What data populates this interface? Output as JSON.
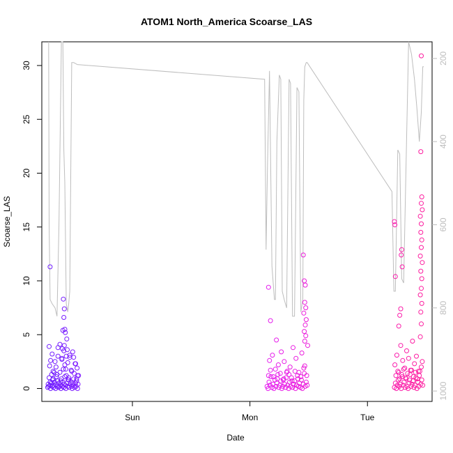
{
  "chart_data": {
    "type": "scatter",
    "title": "ATOM1 North_America Scoarse_LAS",
    "xlabel": "Date",
    "ylabel": "Scoarse_LAS",
    "x_ticks": [
      "Sun",
      "Mon",
      "Tue"
    ],
    "x_tick_hours": [
      24,
      48,
      72
    ],
    "xlim_hours": [
      5.5,
      85.2
    ],
    "ylim": [
      -1.2,
      32.2
    ],
    "y_ticks": [
      0,
      5,
      10,
      15,
      20,
      25,
      30
    ],
    "right_axis": {
      "ticks": [
        200,
        400,
        600,
        800,
        1000
      ],
      "ylim_inverted": [
        1025,
        160
      ],
      "color": "#bdbdbd"
    },
    "grid": false,
    "legend": "none",
    "colors": {
      "start": "#6a1cff",
      "middle": "#e01cff",
      "end": "#ff1c99",
      "line": "#bdbdbd"
    },
    "series": [
      {
        "kind": "points",
        "x_hours": [
          6.7,
          6.8,
          6.9,
          7.0,
          7.1,
          7.2,
          7.3,
          7.4,
          7.5,
          7.6,
          7.7,
          7.8,
          7.9,
          8.0,
          8.1,
          8.2,
          8.3,
          8.4,
          8.5,
          8.6,
          8.7,
          8.8,
          8.9,
          9.0,
          9.1,
          9.2,
          9.3,
          9.4,
          9.5,
          9.6,
          9.7,
          9.8,
          9.9,
          10.0,
          10.1,
          10.2,
          10.3,
          10.4,
          10.5,
          10.6,
          10.7,
          10.8,
          10.9,
          11.0,
          11.1,
          11.2,
          11.3,
          11.4,
          11.5,
          11.6,
          11.7,
          11.8,
          11.9,
          12.0,
          12.1,
          12.2,
          12.3,
          12.4,
          12.5,
          12.6,
          12.7,
          12.8,
          12.9,
          13.0,
          7.0,
          7.3,
          7.6,
          8.0,
          8.4,
          8.8,
          9.2,
          9.6,
          10.0,
          10.4,
          10.8,
          11.2,
          11.6,
          12.0,
          12.4,
          12.8,
          7.2,
          7.8,
          8.6,
          9.4,
          10.2,
          11.0,
          11.8,
          12.6,
          7.2,
          9.9,
          10.1,
          10.0,
          9.8,
          10.3,
          10.6,
          10.1,
          9.7,
          10.5,
          10.2
        ],
        "y": [
          0.1,
          0.4,
          0.2,
          1.0,
          2.1,
          0.3,
          0.0,
          0.5,
          1.3,
          0.2,
          0.8,
          1.6,
          0.1,
          0.3,
          0.6,
          2.5,
          0.0,
          0.4,
          1.1,
          0.2,
          0.7,
          3.0,
          0.1,
          0.5,
          0.2,
          1.5,
          0.3,
          0.0,
          0.9,
          2.8,
          0.2,
          0.6,
          1.8,
          0.1,
          0.4,
          2.2,
          0.3,
          0.0,
          1.2,
          0.5,
          3.6,
          0.2,
          0.8,
          1.0,
          0.1,
          2.9,
          0.4,
          0.6,
          1.7,
          0.2,
          0.0,
          3.4,
          0.3,
          0.9,
          1.4,
          0.1,
          2.3,
          0.5,
          0.2,
          0.7,
          1.9,
          0.0,
          0.4,
          1.2,
          3.9,
          2.6,
          3.2,
          1.5,
          2.0,
          3.8,
          4.1,
          2.7,
          3.5,
          1.8,
          2.4,
          3.1,
          1.6,
          2.9,
          2.3,
          1.2,
          0.6,
          0.9,
          1.3,
          0.7,
          1.1,
          0.8,
          0.5,
          0.9,
          11.3,
          8.3,
          7.4,
          6.6,
          5.4,
          5.2,
          4.6,
          4.0,
          3.7,
          3.0,
          5.5
        ],
        "color_key": "start"
      },
      {
        "kind": "points",
        "x_hours": [
          51.5,
          51.7,
          51.9,
          52.1,
          52.3,
          52.5,
          52.7,
          52.9,
          53.1,
          53.3,
          53.5,
          53.7,
          53.9,
          54.1,
          54.3,
          54.5,
          54.7,
          54.9,
          55.1,
          55.3,
          55.5,
          55.7,
          55.9,
          56.1,
          56.3,
          56.5,
          56.7,
          56.9,
          57.1,
          57.3,
          57.5,
          57.7,
          57.9,
          58.1,
          58.3,
          58.5,
          58.7,
          58.9,
          59.1,
          59.3,
          59.5,
          59.7,
          52.0,
          52.6,
          53.2,
          53.8,
          54.4,
          55.0,
          55.6,
          56.2,
          56.8,
          57.4,
          58.0,
          58.6,
          59.2,
          59.8,
          51.8,
          52.2,
          52.8,
          53.6,
          54.2,
          54.8,
          55.4,
          56.0,
          56.6,
          57.2,
          57.8,
          58.4,
          59.0,
          59.6,
          51.8,
          52.2,
          53.4,
          58.9,
          59.1,
          59.3,
          59.2,
          59.4,
          59.0,
          59.5,
          59.3,
          59.1,
          59.4,
          59.2
        ],
        "y": [
          0.2,
          0.0,
          0.6,
          0.3,
          1.1,
          0.1,
          0.4,
          0.0,
          0.8,
          0.2,
          0.5,
          1.3,
          0.1,
          0.3,
          0.7,
          0.0,
          0.2,
          0.9,
          0.4,
          0.1,
          1.5,
          0.3,
          0.0,
          0.6,
          0.2,
          1.0,
          0.1,
          0.4,
          0.7,
          0.0,
          0.3,
          1.2,
          0.2,
          0.5,
          0.1,
          0.8,
          0.0,
          0.4,
          1.4,
          0.2,
          0.6,
          0.3,
          2.6,
          3.1,
          1.8,
          2.2,
          3.4,
          2.5,
          1.6,
          2.0,
          3.8,
          2.8,
          1.5,
          3.3,
          2.1,
          4.0,
          1.2,
          1.7,
          1.1,
          0.9,
          1.4,
          0.8,
          1.0,
          1.3,
          0.7,
          1.6,
          0.9,
          1.1,
          1.9,
          1.2,
          9.4,
          6.3,
          4.5,
          12.4,
          10.0,
          9.6,
          8.0,
          7.5,
          7.0,
          6.4,
          5.9,
          5.3,
          4.9,
          4.4
        ],
        "color_key": "middle"
      },
      {
        "kind": "points",
        "x_hours": [
          77.5,
          77.7,
          77.9,
          78.1,
          78.3,
          78.5,
          78.7,
          78.9,
          79.1,
          79.3,
          79.5,
          79.7,
          79.9,
          80.1,
          80.3,
          80.5,
          80.7,
          80.9,
          81.1,
          81.3,
          81.5,
          81.7,
          81.9,
          82.1,
          82.3,
          82.5,
          82.7,
          82.9,
          83.1,
          83.3,
          77.6,
          78.0,
          78.4,
          78.8,
          79.2,
          79.6,
          80.0,
          80.4,
          80.8,
          81.2,
          81.6,
          82.0,
          82.4,
          82.8,
          83.2,
          77.8,
          78.2,
          78.6,
          79.0,
          79.4,
          79.8,
          80.2,
          80.6,
          81.0,
          81.4,
          81.8,
          82.2,
          82.6,
          83.0,
          77.5,
          77.6,
          77.7,
          78.6,
          79.0,
          78.9,
          79.1,
          78.8,
          78.4,
          83.0,
          82.9,
          83.1,
          83.0,
          83.2,
          82.8,
          83.0,
          82.9,
          83.1,
          83.0,
          82.8,
          83.2,
          82.9,
          83.1,
          83.0,
          82.8,
          83.1,
          82.9,
          83.0
        ],
        "y": [
          0.1,
          0.5,
          0.0,
          0.3,
          0.8,
          0.2,
          0.4,
          0.0,
          1.1,
          0.3,
          0.6,
          0.1,
          0.9,
          0.2,
          0.0,
          0.5,
          1.3,
          0.2,
          0.4,
          0.7,
          0.1,
          0.3,
          1.0,
          0.0,
          0.6,
          0.2,
          1.6,
          0.4,
          0.8,
          0.3,
          2.2,
          3.1,
          1.5,
          4.0,
          2.6,
          1.9,
          3.5,
          2.8,
          1.7,
          4.4,
          2.3,
          3.0,
          1.6,
          4.8,
          2.5,
          1.2,
          1.6,
          0.9,
          1.3,
          1.8,
          1.0,
          1.4,
          0.8,
          1.7,
          1.1,
          1.5,
          0.9,
          1.2,
          2.0,
          15.5,
          15.2,
          10.4,
          6.8,
          12.9,
          12.4,
          11.3,
          7.4,
          5.8,
          30.9,
          22.0,
          17.8,
          17.2,
          16.6,
          16.0,
          15.3,
          14.5,
          13.8,
          13.1,
          12.3,
          11.7,
          10.9,
          10.2,
          9.3,
          8.7,
          7.9,
          7.1,
          6.0
        ],
        "color_key": "end"
      },
      {
        "kind": "line",
        "axis": "right",
        "x_hours": [
          6.9,
          7.0,
          7.2,
          7.6,
          8.2,
          8.6,
          9.0,
          9.5,
          9.8,
          10.0,
          10.2,
          10.5,
          10.8,
          11.0,
          11.2,
          11.6,
          12.0,
          12.8,
          13.0,
          51.0,
          51.3,
          51.6,
          52.0,
          52.5,
          53.0,
          53.2,
          53.5,
          54.0,
          54.3,
          54.6,
          55.0,
          55.5,
          56.0,
          56.3,
          56.7,
          57.1,
          57.6,
          58.0,
          58.4,
          58.8,
          59.0,
          59.2,
          59.5,
          59.7,
          77.0,
          77.4,
          77.7,
          78.2,
          78.6,
          79.0,
          79.4,
          79.8,
          80.4,
          81.0,
          81.6,
          82.1,
          82.6,
          83.0,
          83.3,
          83.5
        ],
        "y": [
          160,
          600,
          780,
          790,
          800,
          820,
          600,
          160,
          160,
          420,
          500,
          790,
          810,
          790,
          760,
          210,
          210,
          215,
          215,
          250,
          660,
          450,
          230,
          700,
          780,
          780,
          400,
          240,
          250,
          760,
          780,
          800,
          250,
          260,
          820,
          820,
          270,
          280,
          810,
          780,
          300,
          220,
          210,
          210,
          520,
          760,
          760,
          420,
          430,
          730,
          740,
          500,
          160,
          190,
          250,
          320,
          400,
          330,
          220,
          220
        ],
        "color_key": "line"
      }
    ]
  }
}
